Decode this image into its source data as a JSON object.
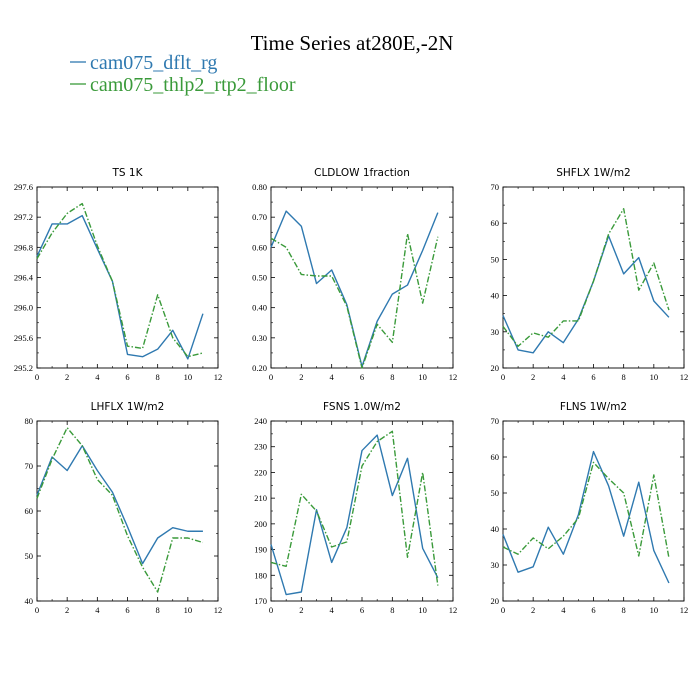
{
  "figure": {
    "title": "Time Series at280E,-2N",
    "legend": [
      {
        "label": "cam075_dflt_rg",
        "color": "#2f79b0",
        "dash": "solid"
      },
      {
        "label": "cam075_thlp2_rtp2_floor",
        "color": "#3a9a3a",
        "dash": "dashdot"
      }
    ]
  },
  "chart_data": [
    {
      "type": "line",
      "title": "TS   1K",
      "x": [
        0,
        1,
        2,
        3,
        4,
        5,
        6,
        7,
        8,
        9,
        10,
        11
      ],
      "xlim": [
        0,
        12
      ],
      "xticks": [
        0,
        2,
        4,
        6,
        8,
        10,
        12
      ],
      "ylim": [
        295.2,
        297.6
      ],
      "yticks": [
        295.2,
        295.6,
        296.0,
        296.4,
        296.8,
        297.2,
        297.6
      ],
      "ytick_labels": [
        "295.2",
        "295.6",
        "296.0",
        "296.4",
        "296.8",
        "297.2",
        "297.6"
      ],
      "series": [
        {
          "name": "cam075_dflt_rg",
          "values": [
            296.68,
            297.11,
            297.11,
            297.22,
            296.78,
            296.35,
            295.38,
            295.35,
            295.45,
            295.7,
            295.32,
            295.92
          ]
        },
        {
          "name": "cam075_thlp2_rtp2_floor",
          "values": [
            296.65,
            296.99,
            297.25,
            297.38,
            296.82,
            296.35,
            295.49,
            295.46,
            296.17,
            295.6,
            295.35,
            295.4
          ]
        }
      ]
    },
    {
      "type": "line",
      "title": "CLDLOW   1fraction",
      "x": [
        0,
        1,
        2,
        3,
        4,
        5,
        6,
        7,
        8,
        9,
        10,
        11
      ],
      "xlim": [
        0,
        12
      ],
      "xticks": [
        0,
        2,
        4,
        6,
        8,
        10,
        12
      ],
      "ylim": [
        0.2,
        0.8
      ],
      "yticks": [
        0.2,
        0.3,
        0.4,
        0.5,
        0.6,
        0.7,
        0.8
      ],
      "ytick_labels": [
        "0.20",
        "0.30",
        "0.40",
        "0.50",
        "0.60",
        "0.70",
        "0.80"
      ],
      "series": [
        {
          "name": "cam075_dflt_rg",
          "values": [
            0.6,
            0.72,
            0.67,
            0.48,
            0.525,
            0.41,
            0.205,
            0.355,
            0.445,
            0.475,
            0.59,
            0.715
          ]
        },
        {
          "name": "cam075_thlp2_rtp2_floor",
          "values": [
            0.63,
            0.6,
            0.51,
            0.505,
            0.505,
            0.405,
            0.2,
            0.345,
            0.285,
            0.645,
            0.415,
            0.635
          ]
        }
      ]
    },
    {
      "type": "line",
      "title": "SHFLX   1W/m2",
      "x": [
        0,
        1,
        2,
        3,
        4,
        5,
        6,
        7,
        8,
        9,
        10,
        11
      ],
      "xlim": [
        0,
        12
      ],
      "xticks": [
        0,
        2,
        4,
        6,
        8,
        10,
        12
      ],
      "ylim": [
        20,
        70
      ],
      "yticks": [
        20,
        30,
        40,
        50,
        60,
        70
      ],
      "ytick_labels": [
        "20",
        "30",
        "40",
        "50",
        "60",
        "70"
      ],
      "series": [
        {
          "name": "cam075_dflt_rg",
          "values": [
            34.5,
            25,
            24.2,
            30,
            27,
            33.5,
            44,
            56.5,
            46,
            50.5,
            38.5,
            34
          ]
        },
        {
          "name": "cam075_thlp2_rtp2_floor",
          "values": [
            31.5,
            26,
            29.7,
            28.5,
            33,
            33,
            44,
            57,
            64,
            41.5,
            49,
            36
          ]
        }
      ]
    },
    {
      "type": "line",
      "title": "LHFLX   1W/m2",
      "x": [
        0,
        1,
        2,
        3,
        4,
        5,
        6,
        7,
        8,
        9,
        10,
        11
      ],
      "xlim": [
        0,
        12
      ],
      "xticks": [
        0,
        2,
        4,
        6,
        8,
        10,
        12
      ],
      "ylim": [
        40,
        80
      ],
      "yticks": [
        40,
        50,
        60,
        70,
        80
      ],
      "ytick_labels": [
        "40",
        "50",
        "60",
        "70",
        "80"
      ],
      "series": [
        {
          "name": "cam075_dflt_rg",
          "values": [
            63.5,
            72,
            69,
            74.5,
            69,
            64.2,
            56.5,
            48.3,
            54,
            56.3,
            55.5,
            55.5
          ]
        },
        {
          "name": "cam075_thlp2_rtp2_floor",
          "values": [
            62.8,
            71.5,
            78.5,
            74.5,
            67,
            63.5,
            54.5,
            47.5,
            42,
            54,
            54,
            53
          ]
        }
      ]
    },
    {
      "type": "line",
      "title": "FSNS   1.0W/m2",
      "x": [
        0,
        1,
        2,
        3,
        4,
        5,
        6,
        7,
        8,
        9,
        10,
        11
      ],
      "xlim": [
        0,
        12
      ],
      "xticks": [
        0,
        2,
        4,
        6,
        8,
        10,
        12
      ],
      "ylim": [
        170,
        240
      ],
      "yticks": [
        170,
        180,
        190,
        200,
        210,
        220,
        230,
        240
      ],
      "ytick_labels": [
        "170",
        "180",
        "190",
        "200",
        "210",
        "220",
        "230",
        "240"
      ],
      "series": [
        {
          "name": "cam075_dflt_rg",
          "values": [
            192,
            172.5,
            173.5,
            205.5,
            185,
            198.5,
            228.5,
            234.5,
            211,
            225.5,
            190.5,
            179
          ]
        },
        {
          "name": "cam075_thlp2_rtp2_floor",
          "values": [
            185,
            183.5,
            211.5,
            205,
            191,
            193,
            222.5,
            232,
            236,
            187,
            220,
            176
          ]
        }
      ]
    },
    {
      "type": "line",
      "title": "FLNS   1W/m2",
      "x": [
        0,
        1,
        2,
        3,
        4,
        5,
        6,
        7,
        8,
        9,
        10,
        11
      ],
      "xlim": [
        0,
        12
      ],
      "xticks": [
        0,
        2,
        4,
        6,
        8,
        10,
        12
      ],
      "ylim": [
        20,
        70
      ],
      "yticks": [
        20,
        30,
        40,
        50,
        60,
        70
      ],
      "ytick_labels": [
        "20",
        "30",
        "40",
        "50",
        "60",
        "70"
      ],
      "series": [
        {
          "name": "cam075_dflt_rg",
          "values": [
            38.5,
            28,
            29.5,
            40.5,
            33,
            44,
            61.5,
            52,
            38,
            53,
            34,
            25
          ]
        },
        {
          "name": "cam075_thlp2_rtp2_floor",
          "values": [
            35,
            33,
            37.5,
            34.5,
            38,
            43,
            58.5,
            54,
            50,
            32.5,
            55,
            32
          ]
        }
      ]
    }
  ]
}
